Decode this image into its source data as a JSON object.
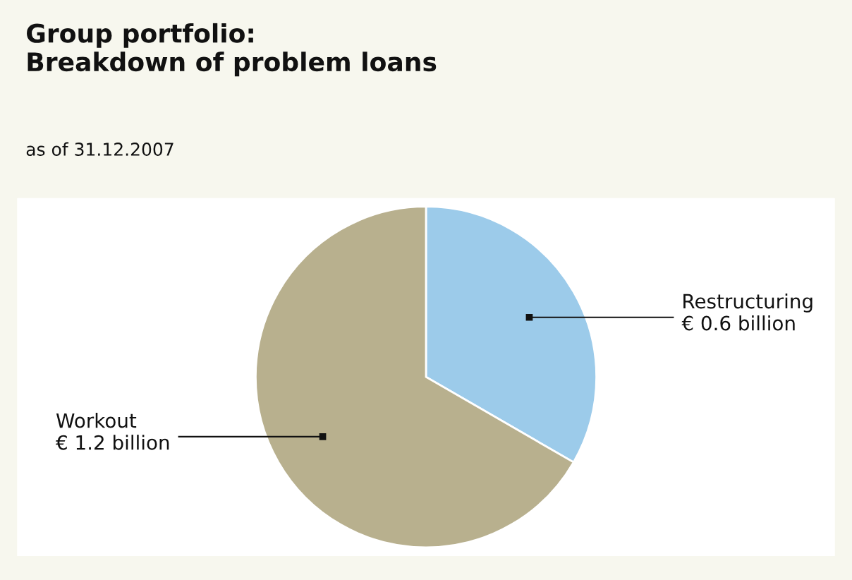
{
  "chart_data": {
    "type": "pie",
    "title": "Group portfolio:\nBreakdown of problem loans",
    "subtitle": "as of 31.12.2007",
    "categories": [
      "Restructuring",
      "Workout"
    ],
    "values": [
      0.6,
      1.2
    ],
    "colors": [
      "#9ccbea",
      "#b8b08e"
    ],
    "value_labels": [
      "€ 0.6 billion",
      "€ 1.2 billion"
    ]
  }
}
